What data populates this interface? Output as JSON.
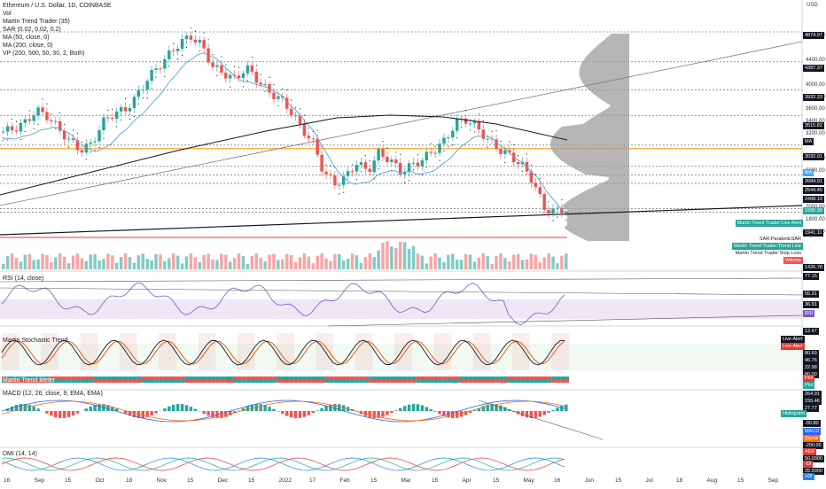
{
  "legend": {
    "symbol": "Ethereum / U.S. Dollar, 1D, COINBASE",
    "lines": [
      "Vol",
      "Martin Trend Trader (35)",
      "SAR (0.02, 0.02, 0.2)",
      "MA (50, close, 0)",
      "MA (200, close, 0)",
      "VP (200, 500, 50, 30, 2, Both)"
    ]
  },
  "currency": "USD",
  "price_axis": {
    "ticks": [
      "4800.00",
      "4400.00",
      "4000.00",
      "3800.00",
      "3600.00",
      "3400.00",
      "3200.00",
      "2800.00",
      "2600.00",
      "2000.00",
      "1800.00",
      "1600.00"
    ],
    "tags": [
      {
        "text": "4874.97",
        "color": "#131722"
      },
      {
        "text": "4387.37",
        "color": "#131722"
      },
      {
        "text": "3932.33",
        "color": "#131722"
      },
      {
        "text": "3515.82",
        "color": "#131722"
      },
      {
        "text": "MA",
        "color": "#131722"
      },
      {
        "text": "3032.01",
        "color": "#131722"
      },
      {
        "text": "MA",
        "color": "#42a5f5"
      },
      {
        "text": "2684.91",
        "color": "#131722"
      },
      {
        "text": "2544.45",
        "color": "#131722"
      },
      {
        "text": "2408.10",
        "color": "#131722"
      },
      {
        "text": "1996.38",
        "color": "#26a69a"
      },
      {
        "text": "1941.11",
        "color": "#131722"
      },
      {
        "text": "1426.78",
        "color": "#131722"
      }
    ],
    "side_tags": [
      {
        "text": "Martin Trend Trader:Live Alert",
        "color": "#26a69a"
      },
      {
        "text": "SAR:ParabolicSAR",
        "color": "#ffffff"
      },
      {
        "text": "Martin Trend Trader:Trend Line",
        "color": "#26a69a"
      },
      {
        "text": "Martin Trend Trader:Stop Loss",
        "color": "#ffffff"
      },
      {
        "text": "Volume",
        "color": "#ef5350"
      }
    ]
  },
  "rsi": {
    "title": "RSI (14, close)",
    "tags": [
      "77.15",
      "55.31",
      "36.91",
      "RSI"
    ]
  },
  "stoch": {
    "title": "Martin Stochastic Trend",
    "tags": [
      "12.47",
      "Live Alert",
      "Live Alert",
      "80.69",
      "46.76",
      "22.98",
      "80.00"
    ]
  },
  "trend_meter": {
    "title": "Martin Trend Meter",
    "tags": [
      "Plot",
      "Plot"
    ]
  },
  "macd": {
    "title": "MACD (12, 26, close, 9, EMA, EMA)",
    "tags": [
      "264.91",
      "155.46",
      "27.77",
      "Histogram",
      "-90.80",
      "MACD",
      "Signal",
      "-200.00"
    ]
  },
  "dmi": {
    "title": "DMI (14, 14)",
    "tags": [
      "ADX",
      "50.0000",
      "-DI",
      "25.0000",
      "+DI"
    ]
  },
  "dates": [
    "16",
    "Sep",
    "15",
    "Oct",
    "18",
    "Nov",
    "15",
    "Dec",
    "15",
    "2022",
    "17",
    "Feb",
    "15",
    "Mar",
    "15",
    "Apr",
    "15",
    "May",
    "16",
    "Jun",
    "15",
    "Jul",
    "18",
    "Aug",
    "15",
    "Sep"
  ],
  "chart_data": {
    "type": "line",
    "title": "Ethereum / U.S. Dollar, 1D, COINBASE",
    "close_series_approx": [
      3250,
      3300,
      3400,
      3600,
      3500,
      3300,
      3100,
      2950,
      3050,
      3400,
      3550,
      3600,
      3800,
      4100,
      4300,
      4500,
      4700,
      4800,
      4650,
      4300,
      4200,
      4100,
      4300,
      4100,
      3900,
      3800,
      3600,
      3300,
      3100,
      2600,
      2400,
      2500,
      2750,
      2600,
      2900,
      2800,
      2600,
      2700,
      2800,
      2950,
      3100,
      3400,
      3450,
      3300,
      3100,
      2950,
      2850,
      2700,
      2450,
      2000,
      1950,
      1990
    ],
    "horizontal_levels": [
      4874.97,
      4387.37,
      3932.33,
      3515.82,
      3032.01,
      2684.91,
      2544.45,
      2408.1,
      1996.38,
      1941.11,
      1426.78
    ]
  }
}
